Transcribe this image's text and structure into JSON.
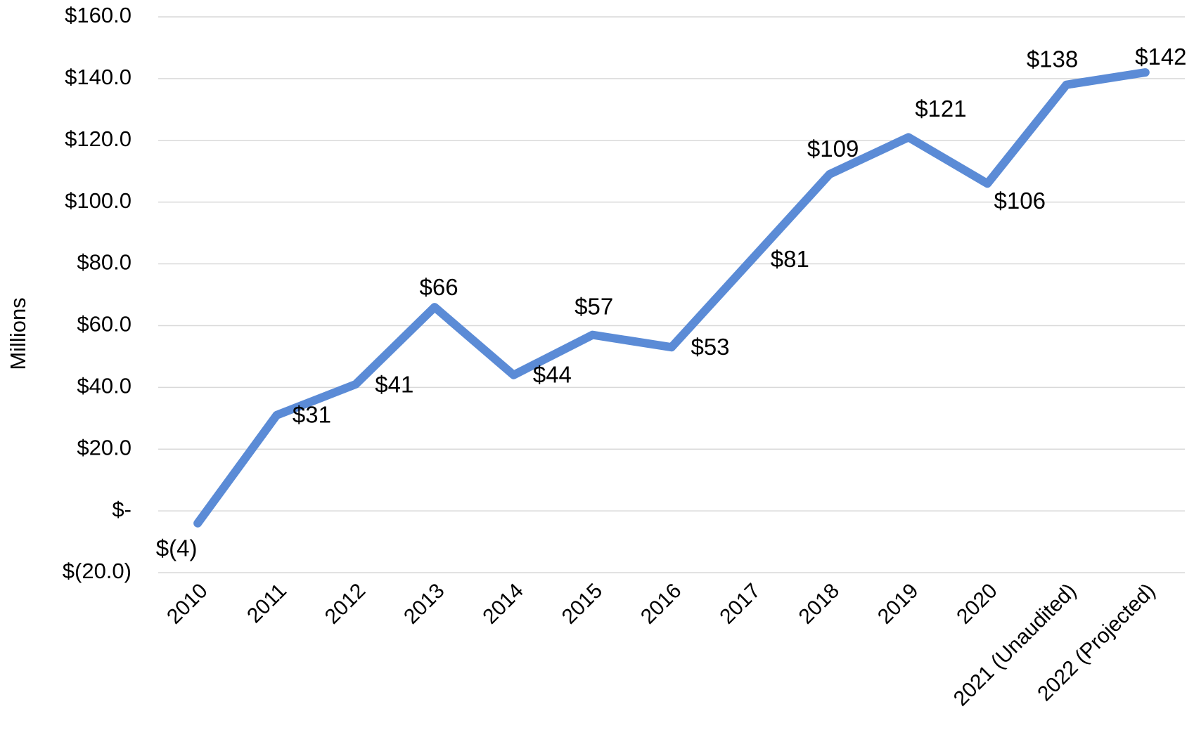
{
  "chart_data": {
    "type": "line",
    "y_label": "Millions",
    "categories": [
      "2010",
      "2011",
      "2012",
      "2013",
      "2014",
      "2015",
      "2016",
      "2017",
      "2018",
      "2019",
      "2020",
      "2021 (Unaudited)",
      "2022 (Projected)"
    ],
    "series": [
      {
        "name": "Millions",
        "color": "#5b8bd6",
        "values": [
          -4,
          31,
          41,
          66,
          44,
          57,
          53,
          81,
          109,
          121,
          106,
          138,
          142
        ],
        "value_labels": [
          "$(4)",
          "$31",
          "$41",
          "$66",
          "$44",
          "$57",
          "$53",
          "$81",
          "$109",
          "$121",
          "$106",
          "$138",
          "$142"
        ]
      }
    ],
    "ylim": [
      -20,
      160
    ],
    "yticks": [
      {
        "value": -20,
        "label": "$(20.0)"
      },
      {
        "value": 0,
        "label": "$-"
      },
      {
        "value": 20,
        "label": "$20.0"
      },
      {
        "value": 40,
        "label": "$40.0"
      },
      {
        "value": 60,
        "label": "$60.0"
      },
      {
        "value": 80,
        "label": "$80.0"
      },
      {
        "value": 100,
        "label": "$100.0"
      },
      {
        "value": 120,
        "label": "$120.0"
      },
      {
        "value": 140,
        "label": "$140.0"
      },
      {
        "value": 160,
        "label": "$160.0"
      }
    ],
    "grid": true
  }
}
